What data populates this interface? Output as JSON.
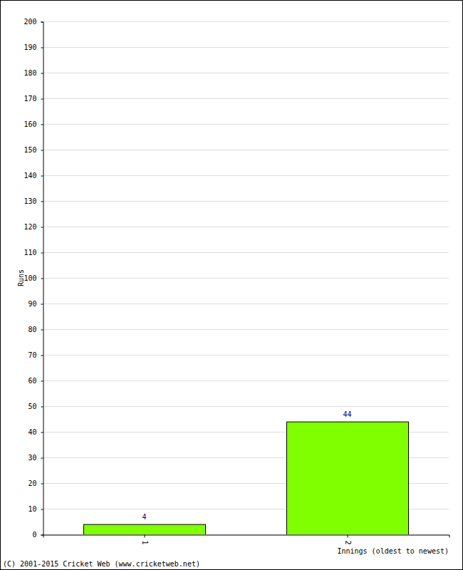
{
  "chart_data": {
    "type": "bar",
    "categories": [
      "1",
      "2"
    ],
    "values": [
      4,
      44
    ],
    "color": "#80ff00",
    "ylim": [
      0,
      200
    ],
    "yticks": [
      0,
      10,
      20,
      30,
      40,
      50,
      60,
      70,
      80,
      90,
      100,
      110,
      120,
      130,
      140,
      150,
      160,
      170,
      180,
      190,
      200
    ],
    "grid": true,
    "data_labels": true,
    "y_label": "Runs",
    "x_label": "Innings (oldest to newest)",
    "annotations": [
      "(C) 2001-2015 Cricket Web (www.cricketweb.net)"
    ]
  }
}
